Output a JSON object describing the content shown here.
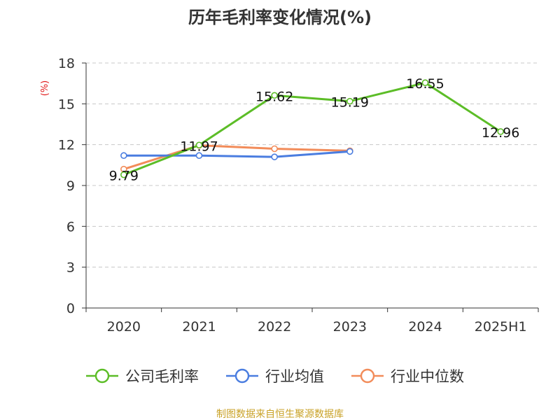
{
  "chart_data": {
    "type": "line",
    "title": "历年毛利率变化情况(%)",
    "ylabel": "(%)",
    "categories": [
      "2020",
      "2021",
      "2022",
      "2023",
      "2024",
      "2025H1"
    ],
    "y_ticks": [
      "0",
      "3",
      "6",
      "9",
      "12",
      "15",
      "18"
    ],
    "ylim": [
      0,
      18
    ],
    "grid": true,
    "legend_position": "bottom",
    "series": [
      {
        "name": "公司毛利率",
        "color": "#5cbd27",
        "values": [
          9.79,
          11.97,
          15.62,
          15.19,
          16.55,
          12.96
        ],
        "labels": [
          "9.79",
          "11.97",
          "15.62",
          "15.19",
          "16.55",
          "12.96"
        ]
      },
      {
        "name": "行业均值",
        "color": "#4a7de0",
        "values": [
          11.2,
          11.2,
          11.1,
          11.5,
          null,
          null
        ]
      },
      {
        "name": "行业中位数",
        "color": "#f28c5a",
        "values": [
          10.2,
          11.95,
          11.7,
          11.55,
          null,
          null
        ]
      }
    ],
    "source": "制图数据来自恒生聚源数据库"
  }
}
